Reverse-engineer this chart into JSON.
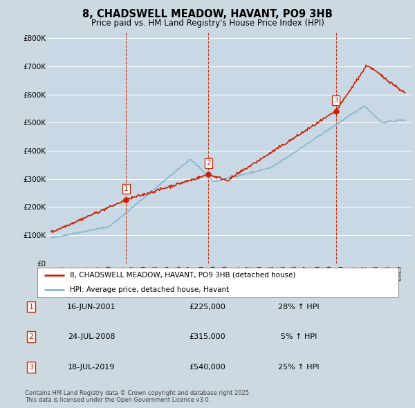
{
  "title": "8, CHADSWELL MEADOW, HAVANT, PO9 3HB",
  "subtitle": "Price paid vs. HM Land Registry's House Price Index (HPI)",
  "bg_color": "#ccd9e0",
  "plot_bg_color": "#c8d8e4",
  "grid_color": "#ffffff",
  "red_color": "#cc2200",
  "blue_color": "#88b8d0",
  "dashed_color": "#cc2200",
  "purchases": [
    {
      "date_num": 2001.46,
      "price": 225000,
      "label": "1"
    },
    {
      "date_num": 2008.56,
      "price": 315000,
      "label": "2"
    },
    {
      "date_num": 2019.54,
      "price": 540000,
      "label": "3"
    }
  ],
  "footer_text": "Contains HM Land Registry data © Crown copyright and database right 2025.\nThis data is licensed under the Open Government Licence v3.0.",
  "legend_line1": "8, CHADSWELL MEADOW, HAVANT, PO9 3HB (detached house)",
  "legend_line2": "HPI: Average price, detached house, Havant",
  "table_rows": [
    [
      "1",
      "16-JUN-2001",
      "£225,000",
      "28% ↑ HPI"
    ],
    [
      "2",
      "24-JUL-2008",
      "£315,000",
      "5% ↑ HPI"
    ],
    [
      "3",
      "18-JUL-2019",
      "£540,000",
      "25% ↑ HPI"
    ]
  ]
}
